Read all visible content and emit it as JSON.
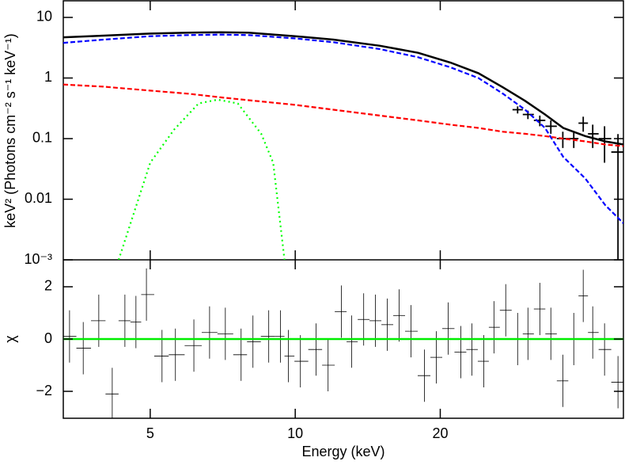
{
  "chart_data": [
    {
      "type": "line",
      "log_x": true,
      "log_y": true,
      "ylabel": "keV² (Photons cm⁻² s⁻¹ keV⁻¹)",
      "xlim": [
        3.3,
        48
      ],
      "ylim": [
        0.001,
        18.8
      ],
      "xticks": [
        5,
        10,
        20
      ],
      "yticks": [
        10,
        1,
        0.1,
        0.01,
        {
          "value": 0.001,
          "label": "10⁻³"
        }
      ],
      "series": [
        {
          "color": "#000000",
          "style": "cross",
          "x": [
            28.95,
            30.41,
            32.19,
            33.93,
            35.93,
            37.86,
            39.61,
            41.45,
            43.86,
            46.77
          ],
          "values": [
            0.3,
            0.25,
            0.2,
            0.16,
            0.1,
            0.1,
            0.18,
            0.12,
            0.1,
            0.06
          ],
          "errors": [
            0.04,
            0.04,
            0.04,
            0.04,
            0.03,
            0.03,
            0.05,
            0.05,
            0.06,
            0.059
          ]
        },
        {
          "color": "#000000",
          "style": "solid",
          "x": [
            3.3,
            4,
            5,
            6,
            7,
            8,
            10,
            12,
            15,
            18,
            21,
            24,
            27,
            30,
            33,
            36,
            40,
            44,
            48
          ],
          "values": [
            4.7,
            5.0,
            5.4,
            5.6,
            5.7,
            5.6,
            4.9,
            4.3,
            3.4,
            2.6,
            1.8,
            1.2,
            0.7,
            0.42,
            0.25,
            0.15,
            0.11,
            0.09,
            0.08
          ]
        },
        {
          "color": "#0000ff",
          "style": "dashed",
          "x": [
            3.3,
            4,
            5,
            6,
            7,
            8,
            10,
            12,
            15,
            18,
            21,
            24,
            27,
            30,
            33,
            36,
            40,
            44,
            48
          ],
          "values": [
            3.8,
            4.3,
            4.9,
            5.1,
            5.2,
            5.1,
            4.5,
            3.9,
            3.0,
            2.2,
            1.5,
            1.0,
            0.55,
            0.3,
            0.15,
            0.05,
            0.022,
            0.008,
            0.004
          ]
        },
        {
          "color": "#ff0000",
          "style": "dashed",
          "x": [
            3.3,
            4,
            5,
            6,
            7,
            8,
            10,
            12,
            15,
            18,
            21,
            24,
            27,
            30,
            33,
            36,
            40,
            44,
            48
          ],
          "values": [
            0.78,
            0.72,
            0.62,
            0.55,
            0.48,
            0.43,
            0.36,
            0.3,
            0.24,
            0.2,
            0.17,
            0.15,
            0.13,
            0.12,
            0.11,
            0.1,
            0.09,
            0.08,
            0.075
          ]
        },
        {
          "color": "#00ff00",
          "style": "dotted",
          "x": [
            4.3,
            5.0,
            5.6,
            6.3,
            6.9,
            7.6,
            8.5,
            9.0,
            9.5
          ],
          "values": [
            0.001,
            0.04,
            0.14,
            0.38,
            0.44,
            0.38,
            0.12,
            0.04,
            0.001
          ]
        }
      ]
    },
    {
      "type": "errorbar",
      "log_x": true,
      "xlabel": "Energy (keV)",
      "ylabel": "χ",
      "xlim": [
        3.3,
        48
      ],
      "ylim": [
        -3.03,
        3.03
      ],
      "xticks": [
        5,
        10,
        20
      ],
      "yticks": [
        2,
        0,
        {
          "value": -2,
          "label": "−2"
        }
      ],
      "reference_line": {
        "value": 0,
        "color": "#00ee00"
      },
      "color": "#000000",
      "x": [
        3.4,
        3.63,
        3.91,
        4.17,
        4.43,
        4.67,
        4.91,
        5.29,
        5.64,
        6.16,
        6.64,
        7.16,
        7.72,
        8.17,
        8.81,
        9.32,
        9.68,
        10.25,
        11.05,
        11.7,
        12.47,
        13.1,
        13.87,
        14.67,
        15.53,
        16.43,
        17.39,
        18.54,
        19.63,
        20.77,
        22.06,
        23.26,
        24.62,
        25.85,
        27.35,
        28.95,
        30.41,
        32.19,
        33.93,
        35.93,
        37.86,
        39.61,
        41.45,
        43.86,
        46.77
      ],
      "values": [
        0.1,
        -0.35,
        0.7,
        -2.1,
        0.7,
        0.65,
        1.7,
        -0.65,
        -0.6,
        -0.25,
        0.25,
        0.2,
        -0.6,
        -0.1,
        0.1,
        0.1,
        -0.65,
        -0.85,
        -0.4,
        -1.0,
        1.05,
        -0.1,
        0.75,
        0.7,
        0.55,
        0.9,
        0.3,
        -1.4,
        -0.7,
        0.4,
        -0.5,
        -0.4,
        -0.85,
        0.45,
        1.1,
        0.0,
        0.2,
        1.15,
        0.2,
        -1.6,
        0.0,
        1.65,
        0.25,
        -0.4,
        -1.65
      ],
      "errors": [
        1,
        1,
        1,
        1,
        1,
        1,
        1,
        1,
        1,
        1,
        1,
        1,
        1,
        1,
        1,
        1,
        1,
        1,
        1,
        1,
        1,
        1,
        1,
        1,
        1,
        1,
        1,
        1,
        1,
        1,
        1,
        1,
        1,
        1,
        1,
        1,
        1,
        1,
        1,
        1,
        1,
        1,
        1,
        1,
        1
      ]
    }
  ]
}
